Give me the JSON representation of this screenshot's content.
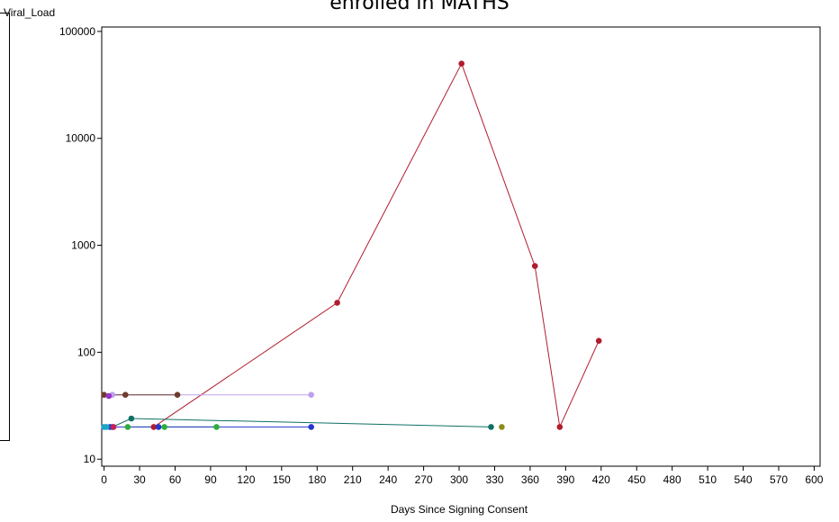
{
  "chart_data": {
    "type": "line",
    "title": "enrolled in MATHS",
    "xlabel": "Days Since Signing Consent",
    "ylabel": "Viral_Load",
    "x_ticks": [
      0,
      30,
      60,
      90,
      120,
      150,
      180,
      210,
      240,
      270,
      300,
      330,
      360,
      390,
      420,
      450,
      480,
      510,
      540,
      570,
      600
    ],
    "y_ticks": [
      10,
      100,
      1000,
      10000,
      100000
    ],
    "y_tick_labels": [
      "10",
      "100",
      "1000",
      "10000",
      "100000"
    ],
    "xlim": [
      -2,
      605
    ],
    "ylim": [
      8.6,
      110000
    ],
    "y_scale": "log",
    "grid": false,
    "series": [
      {
        "color": "#b01c2e",
        "points": [
          [
            42,
            20
          ],
          [
            197,
            290
          ],
          [
            302,
            50000
          ],
          [
            364,
            640
          ],
          [
            385,
            20
          ],
          [
            418,
            128
          ]
        ]
      },
      {
        "color": "#bfa0ee",
        "points": [
          [
            7,
            40
          ],
          [
            175,
            40
          ]
        ]
      },
      {
        "color": "#6e3b2e",
        "points": [
          [
            0,
            40
          ],
          [
            18,
            40
          ],
          [
            62,
            40
          ]
        ]
      },
      {
        "color": "#0e7064",
        "points": [
          [
            7,
            20
          ],
          [
            23,
            24
          ],
          [
            327,
            20
          ]
        ]
      },
      {
        "color": "#8c8c1e",
        "points": [
          [
            336,
            20
          ]
        ]
      },
      {
        "color": "#2cae3c",
        "points": [
          [
            20,
            20
          ],
          [
            51,
            20
          ],
          [
            95,
            20
          ]
        ]
      },
      {
        "color": "#2438cc",
        "points": [
          [
            5,
            20
          ],
          [
            46,
            20
          ],
          [
            175,
            20
          ]
        ]
      },
      {
        "color": "#9933cc",
        "points": [
          [
            4,
            39
          ]
        ]
      },
      {
        "color": "#c81e5a",
        "points": [
          [
            8,
            20
          ]
        ]
      },
      {
        "color": "#1aa6c8",
        "points": [
          [
            0,
            20
          ],
          [
            2,
            20
          ]
        ]
      }
    ]
  }
}
